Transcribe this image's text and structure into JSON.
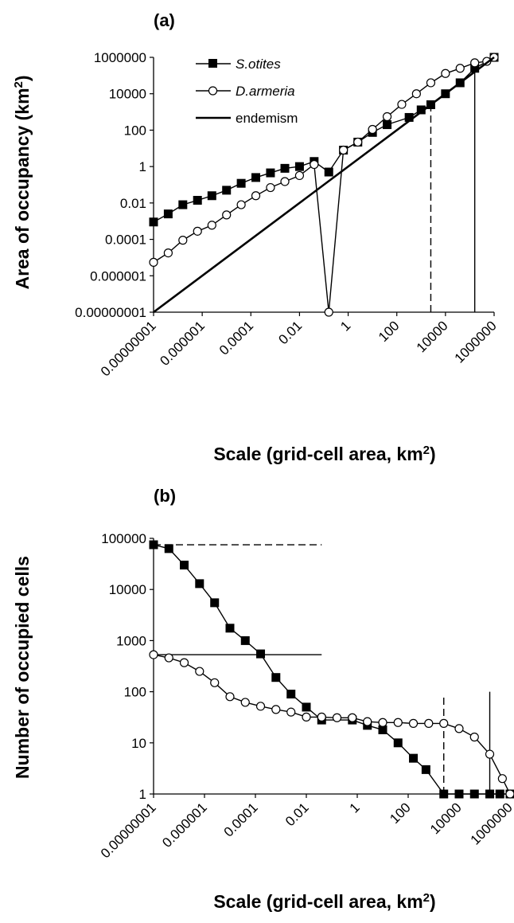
{
  "chart_data": [
    {
      "panel": "(a)",
      "type": "line",
      "xscale": "log",
      "yscale": "log",
      "xlabel": "Scale (grid-cell area, km",
      "xlabel_sup": "2",
      "xlabel_end": ")",
      "ylabel": "Area of occupancy (km",
      "ylabel_sup": "2",
      "ylabel_end": ")",
      "xlim": [
        1e-08,
        1000000
      ],
      "ylim": [
        1e-08,
        1000000
      ],
      "xticks": [
        "0.00000001",
        "0.000001",
        "0.0001",
        "0.01",
        "1",
        "100",
        "10000",
        "1000000"
      ],
      "yticks": [
        "0.00000001",
        "0.000001",
        "0.0001",
        "0.01",
        "1",
        "100",
        "10000",
        "1000000"
      ],
      "legend_position": "top-left",
      "series": [
        {
          "name": "S.otites",
          "marker": "square",
          "x": [
            1e-08,
            4e-08,
            1.6e-07,
            6.4e-07,
            2.5e-06,
            1e-05,
            4e-05,
            0.00016,
            0.00064,
            0.0025,
            0.01,
            0.04,
            0.16,
            0.64,
            2.5,
            10,
            40,
            320,
            1000,
            2500,
            10000,
            40000,
            160000,
            1000000
          ],
          "y": [
            0.0009,
            0.0025,
            0.008,
            0.014,
            0.025,
            0.05,
            0.12,
            0.25,
            0.45,
            0.8,
            1.0,
            1.9,
            0.5,
            8,
            22,
            75,
            200,
            500,
            1300,
            2500,
            10000,
            40000,
            250000,
            1000000
          ]
        },
        {
          "name": "D.armeria",
          "marker": "circle",
          "x": [
            1e-08,
            4e-08,
            1.6e-07,
            6.4e-07,
            2.5e-06,
            1e-05,
            4e-05,
            0.00016,
            0.00064,
            0.0025,
            0.01,
            0.04,
            0.16,
            0.64,
            2.5,
            10,
            40,
            160,
            640,
            2500,
            10000,
            40000,
            160000,
            500000,
            1000000
          ],
          "y": [
            5.5e-06,
            1.8e-05,
            9e-05,
            0.00028,
            0.0006,
            0.0022,
            0.008,
            0.025,
            0.07,
            0.15,
            0.32,
            1.3,
            0.0,
            8,
            22,
            110,
            550,
            2600,
            10000,
            40000,
            130000,
            250000,
            500000,
            600000,
            1000000
          ]
        },
        {
          "name": "endemism",
          "marker": "none",
          "x": [
            1e-08,
            1000000
          ],
          "y": [
            1e-08,
            1000000
          ]
        }
      ],
      "reference_lines": [
        {
          "style": "dashed",
          "x": 2500,
          "y_from": 1e-08,
          "y_to": 2500
        },
        {
          "style": "solid",
          "x": 160000,
          "y_from": 1e-08,
          "y_to": 160000
        }
      ]
    },
    {
      "panel": "(b)",
      "type": "line",
      "xscale": "log",
      "yscale": "log",
      "xlabel": "Scale (grid-cell area, km",
      "xlabel_sup": "2",
      "xlabel_end": ")",
      "ylabel": "Number of occupied cells",
      "xlim": [
        1e-08,
        1000000
      ],
      "ylim": [
        1,
        100000
      ],
      "xticks": [
        "0.00000001",
        "0.000001",
        "0.0001",
        "0.01",
        "1",
        "100",
        "10000",
        "1000000"
      ],
      "yticks": [
        "100000",
        "10000",
        "1000",
        "100",
        "10",
        "1"
      ],
      "series": [
        {
          "name": "S.otites",
          "marker": "square",
          "x": [
            1e-08,
            4e-08,
            1.6e-07,
            6.4e-07,
            2.5e-06,
            1e-05,
            4e-05,
            0.00016,
            0.00064,
            0.0025,
            0.01,
            0.04,
            0.64,
            2.5,
            10,
            40,
            160,
            500,
            2500,
            10000,
            40000,
            160000,
            400000,
            1000000
          ],
          "y": [
            75000,
            63000,
            30000,
            13000,
            5500,
            1750,
            1000,
            550,
            190,
            90,
            50,
            28,
            28,
            22,
            18,
            10,
            5,
            3,
            1,
            1,
            1,
            1,
            1,
            1
          ]
        },
        {
          "name": "D.armeria",
          "marker": "circle",
          "x": [
            1e-08,
            4e-08,
            1.6e-07,
            6.4e-07,
            2.5e-06,
            1e-05,
            4e-05,
            0.00016,
            0.00064,
            0.0025,
            0.01,
            0.04,
            0.16,
            0.64,
            2.5,
            10,
            40,
            160,
            640,
            2500,
            10000,
            40000,
            160000,
            500000,
            1000000
          ],
          "y": [
            530,
            460,
            370,
            250,
            150,
            80,
            62,
            52,
            45,
            40,
            32,
            32,
            31,
            31,
            26,
            25,
            25,
            24,
            24,
            24,
            19,
            13,
            6,
            2,
            1
          ]
        }
      ],
      "reference_lines": [
        {
          "style": "dashed",
          "orientation": "horizontal",
          "y": 75000,
          "x_from": 1e-08,
          "x_to": 0.04
        },
        {
          "style": "solid",
          "orientation": "horizontal",
          "y": 530,
          "x_from": 1e-08,
          "x_to": 0.04
        },
        {
          "style": "dashed",
          "orientation": "vertical",
          "x": 2500,
          "y_from": 1,
          "y_to": 80
        },
        {
          "style": "solid",
          "orientation": "vertical",
          "x": 160000,
          "y_from": 1,
          "y_to": 100
        }
      ]
    }
  ],
  "legend": {
    "items": [
      "S.otites",
      "D.armeria",
      "endemism"
    ]
  }
}
